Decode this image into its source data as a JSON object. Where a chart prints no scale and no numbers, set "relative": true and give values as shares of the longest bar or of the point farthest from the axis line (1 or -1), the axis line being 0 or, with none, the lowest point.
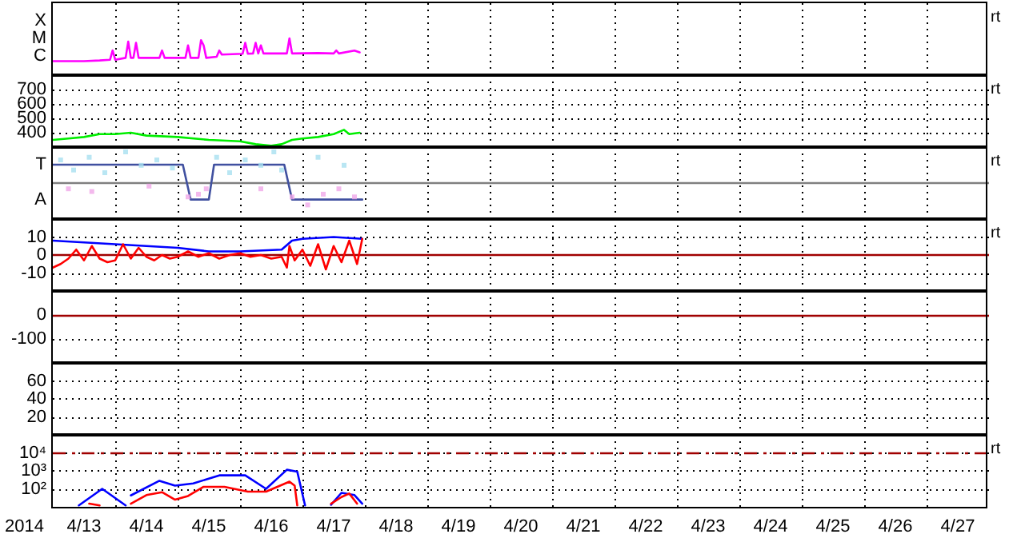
{
  "chart_data": [
    {
      "type": "line",
      "xlim": [
        "2014-04-13",
        "2014-04-28"
      ],
      "relative": true,
      "grid": "x",
      "marker": "none",
      "line_style": "solid",
      "tick_labels": false,
      "annotations": [
        "X",
        "M",
        "C",
        "rt"
      ],
      "series": [
        {
          "color": "#ff00ff",
          "x": [
            "2014-04-13",
            "2014-04-13T06:00",
            "2014-04-13T12:00",
            "2014-04-13T18:00",
            "2014-04-13T22:00",
            "2014-04-13T23:00",
            "2014-04-14T00:00",
            "2014-04-14T04:00",
            "2014-04-14T05:00",
            "2014-04-14T06:00",
            "2014-04-14T07:00",
            "2014-04-14T08:00",
            "2014-04-14T09:00",
            "2014-04-14T14:00",
            "2014-04-14T17:00",
            "2014-04-14T18:00",
            "2014-04-14T19:00",
            "2014-04-15T03:00",
            "2014-04-15T04:00",
            "2014-04-15T05:00",
            "2014-04-15T08:00",
            "2014-04-15T09:00",
            "2014-04-15T10:00",
            "2014-04-15T11:00",
            "2014-04-15T15:00",
            "2014-04-15T16:00",
            "2014-04-15T17:00",
            "2014-04-16T01:00",
            "2014-04-16T02:00",
            "2014-04-16T03:00",
            "2014-04-16T05:00",
            "2014-04-16T06:00",
            "2014-04-16T07:00",
            "2014-04-16T08:00",
            "2014-04-16T09:00",
            "2014-04-16T18:00",
            "2014-04-16T19:00",
            "2014-04-16T20:00",
            "2014-04-17T06:00",
            "2014-04-17T12:00",
            "2014-04-17T13:00",
            "2014-04-17T14:00",
            "2014-04-17T20:00",
            "2014-04-17T22:00"
          ],
          "values": [
            0.38,
            0.38,
            0.38,
            0.4,
            0.42,
            0.67,
            0.42,
            0.47,
            0.91,
            0.47,
            0.47,
            0.88,
            0.47,
            0.47,
            0.47,
            0.67,
            0.47,
            0.47,
            0.81,
            0.47,
            0.47,
            0.95,
            0.81,
            0.47,
            0.5,
            0.67,
            0.56,
            0.58,
            0.88,
            0.58,
            0.59,
            0.88,
            0.59,
            0.81,
            0.59,
            0.59,
            1,
            0.59,
            0.6,
            0.59,
            0.67,
            0.59,
            0.67,
            0.62
          ]
        }
      ]
    },
    {
      "type": "line",
      "xlim": [
        "2014-04-13",
        "2014-04-28"
      ],
      "ylim": [
        300,
        800
      ],
      "yticks": [
        400,
        500,
        600,
        700
      ],
      "grid": true,
      "marker": "none",
      "line_style": "solid",
      "tick_labels": "y",
      "annotations": [
        "rt"
      ],
      "series": [
        {
          "color": "#00ee00",
          "x": [
            "2014-04-13",
            "2014-04-13T06:00",
            "2014-04-13T12:00",
            "2014-04-13T18:00",
            "2014-04-14",
            "2014-04-14T06:00",
            "2014-04-14T12:00",
            "2014-04-15",
            "2014-04-15T12:00",
            "2014-04-16",
            "2014-04-16T06:00",
            "2014-04-16T12:00",
            "2014-04-16T16:00",
            "2014-04-16T20:00",
            "2014-04-17",
            "2014-04-17T06:00",
            "2014-04-17T12:00",
            "2014-04-17T16:00",
            "2014-04-17T18:00",
            "2014-04-17T22:00"
          ],
          "values": [
            350,
            360,
            370,
            390,
            390,
            400,
            380,
            370,
            350,
            340,
            320,
            310,
            320,
            350,
            360,
            370,
            390,
            420,
            390,
            400
          ]
        }
      ]
    },
    {
      "type": "line",
      "xlim": [
        "2014-04-13",
        "2014-04-28"
      ],
      "relative": true,
      "grid": "x",
      "marker": "none",
      "line_style": "solid",
      "tick_labels": false,
      "annotations": [
        "T",
        "A",
        "rt"
      ],
      "ref_lines": [
        {
          "axis": "y",
          "value": 0.55,
          "color": "#808080"
        }
      ],
      "series": [
        {
          "type": "scatter",
          "marker": "square",
          "color": "#a8e0f0",
          "x": [
            "2014-04-13T03:00",
            "2014-04-13T08:00",
            "2014-04-13T14:00",
            "2014-04-13T20:00",
            "2014-04-14T04:00",
            "2014-04-14T10:00",
            "2014-04-14T16:00",
            "2014-04-14T22:00",
            "2014-04-15T15:00",
            "2014-04-15T20:00",
            "2014-04-16T02:00",
            "2014-04-16T08:00",
            "2014-04-16T13:00",
            "2014-04-16T16:00",
            "2014-04-17T06:00",
            "2014-04-17T16:00"
          ],
          "values": [
            0.88,
            0.73,
            0.92,
            0.69,
            1,
            0.8,
            0.88,
            0.76,
            0.92,
            0.69,
            0.88,
            0.8,
            1,
            0.73,
            0.92,
            0.8
          ]
        },
        {
          "type": "scatter",
          "marker": "square",
          "color": "#f0a8e8",
          "x": [
            "2014-04-13T06:00",
            "2014-04-13T15:00",
            "2014-04-14T13:00",
            "2014-04-15T04:00",
            "2014-04-15T08:00",
            "2014-04-15T11:00",
            "2014-04-16T08:00",
            "2014-04-16T20:00",
            "2014-04-17T02:00",
            "2014-04-17T08:00",
            "2014-04-17T14:00",
            "2014-04-17T20:00"
          ],
          "values": [
            0.45,
            0.41,
            0.49,
            0.33,
            0.37,
            0.45,
            0.45,
            0.33,
            0.21,
            0.37,
            0.45,
            0.33
          ]
        },
        {
          "color": "#4050a0",
          "x": [
            "2014-04-13",
            "2014-04-15T02:00",
            "2014-04-15T05:00",
            "2014-04-15T12:00",
            "2014-04-15T14:00",
            "2014-04-16T17:00",
            "2014-04-16T20:00",
            "2014-04-17T23:00"
          ],
          "values": [
            0.81,
            0.81,
            0.29,
            0.29,
            0.81,
            0.81,
            0.29,
            0.29
          ]
        }
      ]
    },
    {
      "type": "line",
      "xlim": [
        "2014-04-13",
        "2014-04-28"
      ],
      "ylim": [
        -20,
        20
      ],
      "yticks": [
        -10,
        0,
        10
      ],
      "grid": true,
      "marker": "none",
      "line_style": "solid",
      "tick_labels": "y",
      "annotations": [
        "rt"
      ],
      "ref_lines": [
        {
          "axis": "y",
          "value": 0,
          "color": "#a00000"
        }
      ],
      "series": [
        {
          "color": "#0000ff",
          "x": [
            "2014-04-13",
            "2014-04-13T12:00",
            "2014-04-14",
            "2014-04-14T12:00",
            "2014-04-15",
            "2014-04-15T12:00",
            "2014-04-16",
            "2014-04-16T16:00",
            "2014-04-16T20:00",
            "2014-04-17",
            "2014-04-17T12:00",
            "2014-04-17T23:00"
          ],
          "values": [
            8,
            7,
            6,
            5,
            4,
            2,
            2,
            3,
            8,
            9,
            10,
            9
          ]
        },
        {
          "color": "#ff0000",
          "x": [
            "2014-04-13",
            "2014-04-13T03:00",
            "2014-04-13T06:00",
            "2014-04-13T09:00",
            "2014-04-13T12:00",
            "2014-04-13T15:00",
            "2014-04-13T18:00",
            "2014-04-13T21:00",
            "2014-04-14",
            "2014-04-14T03:00",
            "2014-04-14T06:00",
            "2014-04-14T09:00",
            "2014-04-14T12:00",
            "2014-04-14T15:00",
            "2014-04-14T18:00",
            "2014-04-14T21:00",
            "2014-04-15",
            "2014-04-15T04:00",
            "2014-04-15T08:00",
            "2014-04-15T12:00",
            "2014-04-15T16:00",
            "2014-04-15T20:00",
            "2014-04-16",
            "2014-04-16T04:00",
            "2014-04-16T08:00",
            "2014-04-16T12:00",
            "2014-04-16T16:00",
            "2014-04-16T18:00",
            "2014-04-16T19:00",
            "2014-04-16T21:00",
            "2014-04-17",
            "2014-04-17T03:00",
            "2014-04-17T06:00",
            "2014-04-17T09:00",
            "2014-04-17T12:00",
            "2014-04-17T15:00",
            "2014-04-17T18:00",
            "2014-04-17T21:00",
            "2014-04-17T23:00"
          ],
          "values": [
            -7,
            -5,
            -2,
            3,
            -3,
            5,
            -2,
            -4,
            -3,
            6,
            -2,
            4,
            -1,
            -3,
            0,
            -2,
            -1,
            2,
            -1,
            1,
            -2,
            0,
            1,
            -1,
            0,
            -2,
            -1,
            -7,
            5,
            -3,
            3,
            -6,
            6,
            -8,
            5,
            -4,
            8,
            -5,
            9
          ]
        }
      ]
    },
    {
      "type": "line",
      "xlim": [
        "2014-04-13",
        "2014-04-28"
      ],
      "ylim": [
        -200,
        100
      ],
      "yticks": [
        -100,
        0
      ],
      "grid": true,
      "tick_labels": "y",
      "ref_lines": [
        {
          "axis": "y",
          "value": 0,
          "color": "#a00000"
        }
      ]
    },
    {
      "type": "line",
      "xlim": [
        "2014-04-13",
        "2014-04-28"
      ],
      "ylim": [
        0,
        80
      ],
      "yticks": [
        20,
        40,
        60
      ],
      "grid": true,
      "tick_labels": "y"
    },
    {
      "type": "line",
      "xlim": [
        "2014-04-13",
        "2014-04-28"
      ],
      "xticks": [
        {
          "value": "2014-04-13T12:00",
          "label": "4/13"
        },
        {
          "value": "2014-04-14",
          "label": null
        },
        {
          "value": "2014-04-14T12:00",
          "label": "4/14"
        },
        {
          "value": "2014-04-15",
          "label": null
        },
        {
          "value": "2014-04-15T12:00",
          "label": "4/15"
        },
        {
          "value": "2014-04-16",
          "label": null
        },
        {
          "value": "2014-04-16T12:00",
          "label": "4/16"
        },
        {
          "value": "2014-04-17",
          "label": null
        },
        {
          "value": "2014-04-17T12:00",
          "label": "4/17"
        },
        {
          "value": "2014-04-18",
          "label": null
        },
        {
          "value": "2014-04-18T12:00",
          "label": "4/18"
        },
        {
          "value": "2014-04-19",
          "label": null
        },
        {
          "value": "2014-04-19T12:00",
          "label": "4/19"
        },
        {
          "value": "2014-04-20",
          "label": null
        },
        {
          "value": "2014-04-20T12:00",
          "label": "4/20"
        },
        {
          "value": "2014-04-21",
          "label": null
        },
        {
          "value": "2014-04-21T12:00",
          "label": "4/21"
        },
        {
          "value": "2014-04-22",
          "label": null
        },
        {
          "value": "2014-04-22T12:00",
          "label": "4/22"
        },
        {
          "value": "2014-04-23",
          "label": null
        },
        {
          "value": "2014-04-23T12:00",
          "label": "4/23"
        },
        {
          "value": "2014-04-24",
          "label": null
        },
        {
          "value": "2014-04-24T12:00",
          "label": "4/24"
        },
        {
          "value": "2014-04-25",
          "label": null
        },
        {
          "value": "2014-04-25T12:00",
          "label": "4/25"
        },
        {
          "value": "2014-04-26",
          "label": null
        },
        {
          "value": "2014-04-26T12:00",
          "label": "4/26"
        },
        {
          "value": "2014-04-27",
          "label": null
        },
        {
          "value": "2014-04-27T12:00",
          "label": "4/27"
        }
      ],
      "log": "y",
      "ylim": [
        10,
        100000
      ],
      "yticks": [
        {
          "value": 100,
          "label": "10²"
        },
        {
          "value": 1000,
          "label": "10³"
        },
        {
          "value": 10000,
          "label": "10⁴"
        }
      ],
      "grid": true,
      "marker": "none",
      "line_style": "solid",
      "annotations": [
        "rt",
        "2014"
      ],
      "ref_lines": [
        {
          "axis": "y",
          "value": 10000,
          "color": "#a00000",
          "line_style": "dashed"
        }
      ],
      "series": [
        {
          "color": "#0000ff",
          "x": [
            "2014-04-13T10:00",
            "2014-04-13T19:00",
            "2014-04-14T04:00",
            "2014-04-14T05:00",
            "2014-04-14T06:00",
            "2014-04-14T17:00",
            "2014-04-14T23:00",
            "2014-04-15T06:00",
            "2014-04-15T16:00",
            "2014-04-16T02:00",
            "2014-04-16T10:00",
            "2014-04-16T18:00",
            "2014-04-16T22:00",
            "2014-04-17T01:00",
            "2014-04-17T05:00",
            "2014-04-17T11:00",
            "2014-04-17T15:00",
            "2014-04-17T20:00",
            "2014-04-17T23:00"
          ],
          "values": [
            12,
            100,
            12,
            null,
            43,
            280,
            150,
            200,
            560,
            560,
            100,
            1150,
            900,
            12,
            null,
            13,
            60,
            45,
            15
          ]
        },
        {
          "color": "#ff0000",
          "x": [
            "2014-04-13T14:00",
            "2014-04-13T18:00",
            "2014-04-13T20:00",
            "2014-04-14T06:00",
            "2014-04-14T12:00",
            "2014-04-14T18:00",
            "2014-04-14T23:00",
            "2014-04-15T04:00",
            "2014-04-15T10:00",
            "2014-04-15T18:00",
            "2014-04-16T03:00",
            "2014-04-16T10:00",
            "2014-04-16T19:00",
            "2014-04-16T21:00",
            "2014-04-16T22:00",
            "2014-04-17T02:00",
            "2014-04-17T11:00",
            "2014-04-17T15:00",
            "2014-04-17T18:00",
            "2014-04-17T21:00"
          ],
          "values": [
            15,
            12,
            null,
            15,
            45,
            65,
            25,
            40,
            130,
            130,
            70,
            70,
            250,
            150,
            12,
            null,
            15,
            35,
            55,
            15
          ]
        }
      ]
    }
  ]
}
